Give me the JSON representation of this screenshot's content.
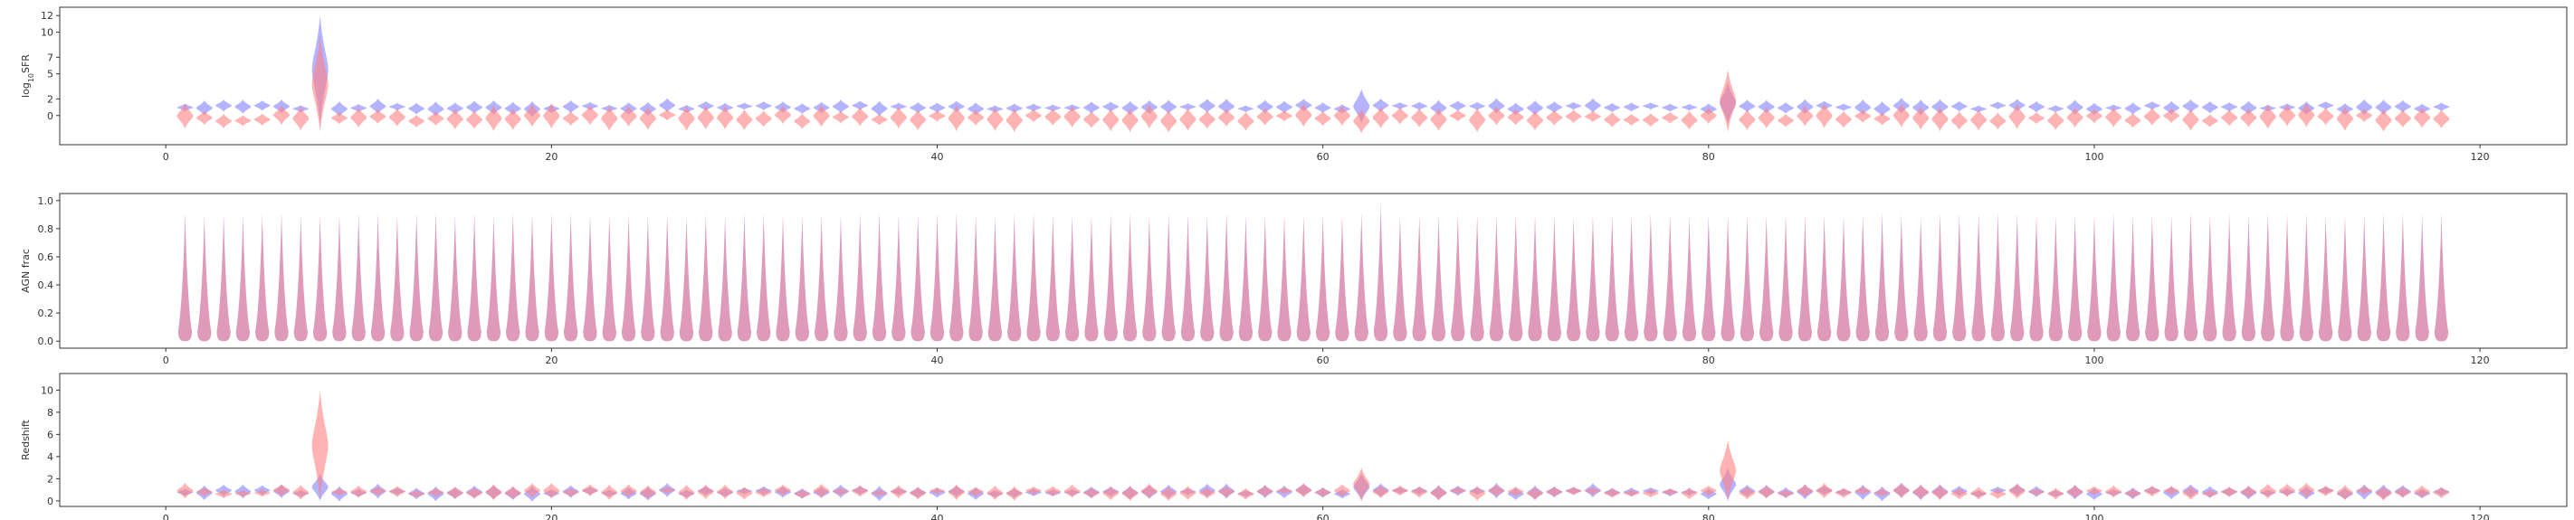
{
  "colors": {
    "series_a": "#8080ff",
    "series_b": "#ff8080",
    "overlap": "#b070c0",
    "axis": "#333333"
  },
  "chart_data": [
    {
      "type": "violin",
      "title": "",
      "xlabel": "",
      "ylabel": "log₁₀SFR",
      "ylabel_parts": {
        "prefix": "log",
        "sub": "10",
        "suffix": "SFR"
      },
      "xlim": [
        -5.5,
        124.5
      ],
      "ylim": [
        -3.5,
        13.0
      ],
      "xticks": [
        0,
        20,
        40,
        60,
        80,
        100,
        120
      ],
      "yticks": [
        0,
        2,
        5,
        7,
        10,
        12
      ],
      "ytick_labels": [
        "0",
        "2",
        "5",
        "7",
        "10",
        "12"
      ],
      "n": 118,
      "series": [
        {
          "center": 1.0,
          "spread": 0.8,
          "special": {
            "8": [
              -1.0,
              12.0
            ],
            "62": [
              -1.0,
              3.2
            ],
            "81": [
              -1.0,
              4.0
            ]
          }
        },
        {
          "center": -0.3,
          "spread": 1.3,
          "special": {
            "8": [
              -2.0,
              9.5
            ],
            "81": [
              -2.0,
              5.5
            ]
          }
        }
      ]
    },
    {
      "type": "violin",
      "title": "",
      "xlabel": "",
      "ylabel": "AGN frac",
      "xlim": [
        -5.5,
        124.5
      ],
      "ylim": [
        -0.05,
        1.05
      ],
      "xticks": [
        0,
        20,
        40,
        60,
        80,
        100,
        120
      ],
      "yticks": [
        0.0,
        0.2,
        0.4,
        0.6,
        0.8,
        1.0
      ],
      "ytick_labels": [
        "0.0",
        "0.2",
        "0.4",
        "0.6",
        "0.8",
        "1.0"
      ],
      "n": 118,
      "series": [
        {
          "center": 0.45,
          "spread": 0.45,
          "special": {
            "63": [
              0.0,
              1.0
            ]
          }
        },
        {
          "center": 0.45,
          "spread": 0.45,
          "special": {}
        }
      ]
    },
    {
      "type": "violin",
      "title": "",
      "xlabel": "",
      "ylabel": "Redshift",
      "xlim": [
        -5.5,
        124.5
      ],
      "ylim": [
        -0.5,
        11.5
      ],
      "xticks": [
        0,
        20,
        40,
        60,
        80,
        100,
        120
      ],
      "yticks": [
        0,
        2,
        4,
        6,
        8,
        10
      ],
      "ytick_labels": [
        "0",
        "2",
        "4",
        "6",
        "8",
        "10"
      ],
      "n": 118,
      "series": [
        {
          "center": 0.8,
          "spread": 0.6,
          "special": {
            "8": [
              0.0,
              2.5
            ],
            "62": [
              0.0,
              2.5
            ],
            "81": [
              0.0,
              3.0
            ]
          }
        },
        {
          "center": 0.8,
          "spread": 0.6,
          "special": {
            "8": [
              0.0,
              10.0
            ],
            "62": [
              0.0,
              3.0
            ],
            "81": [
              0.0,
              5.5
            ]
          }
        }
      ]
    }
  ]
}
